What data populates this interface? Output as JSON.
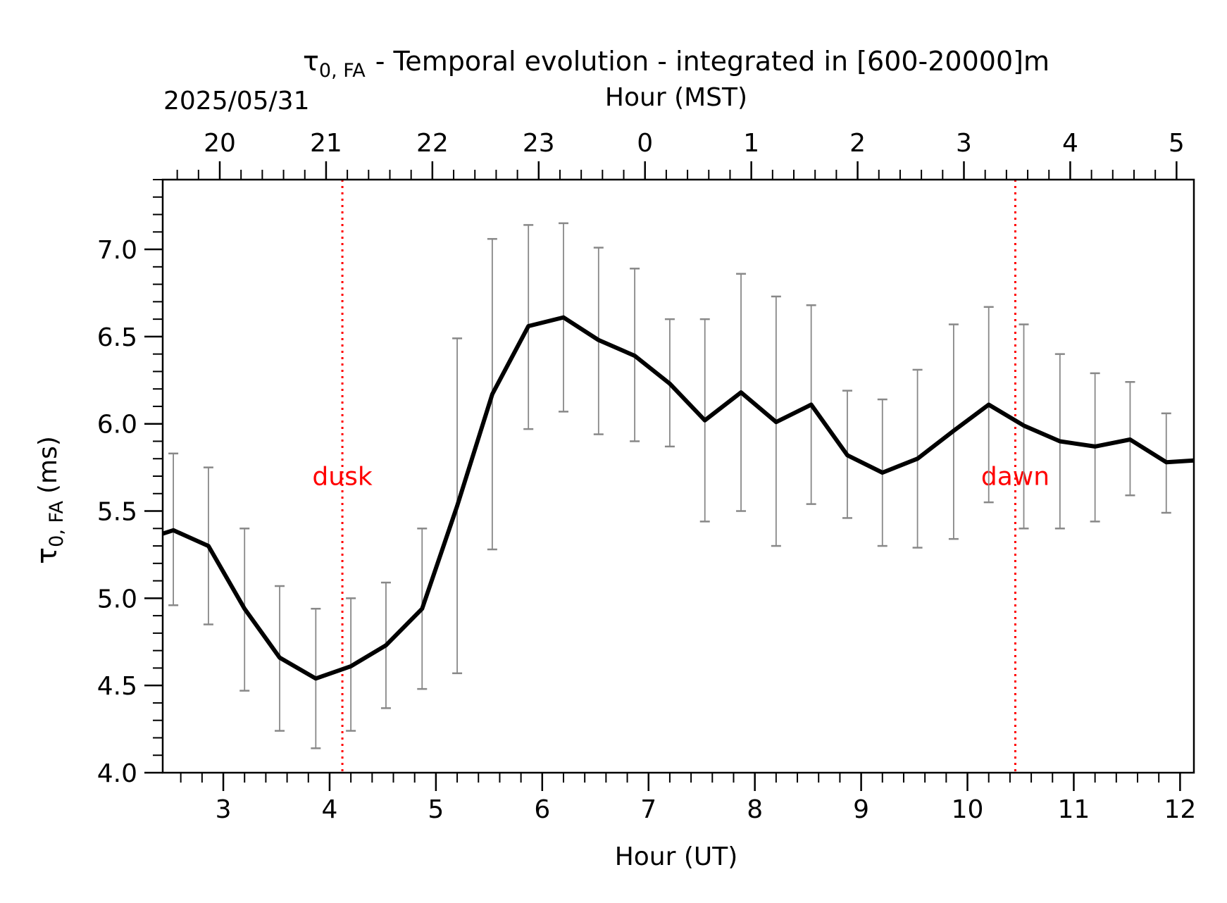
{
  "chart_data": {
    "type": "line",
    "title": "- Temporal evolution - integrated in [600-20000]m",
    "title_symbol": "τ",
    "title_symbol_sub": "0, FA",
    "date_label": "2025/05/31",
    "xlabel": "Hour (UT)",
    "x2label": "Hour (MST)",
    "ylabel_symbol": "τ",
    "ylabel_sub": "0, FA",
    "ylabel_unit": "(ms)",
    "xlim": [
      2.43,
      12.13
    ],
    "ylim": [
      4.0,
      7.4
    ],
    "x_ticks": [
      3,
      4,
      5,
      6,
      7,
      8,
      9,
      10,
      11,
      12
    ],
    "x_tick_labels": [
      "3",
      "4",
      "5",
      "6",
      "7",
      "8",
      "9",
      "10",
      "11",
      "12"
    ],
    "x2_ticks": [
      2.9667,
      3.9667,
      4.9667,
      5.9667,
      6.9667,
      7.9667,
      8.9667,
      9.9667,
      10.9667,
      11.9667
    ],
    "x2_tick_labels": [
      "20",
      "21",
      "22",
      "23",
      "0",
      "1",
      "2",
      "3",
      "4",
      "5"
    ],
    "y_ticks": [
      4.0,
      4.5,
      5.0,
      5.5,
      6.0,
      6.5,
      7.0
    ],
    "y_tick_labels": [
      "4.0",
      "4.5",
      "5.0",
      "5.5",
      "6.0",
      "6.5",
      "7.0"
    ],
    "series": [
      {
        "color": "#000000",
        "errorbar_color": "#888888",
        "points": [
          {
            "x": 2.43,
            "y": 5.37
          },
          {
            "x": 2.53,
            "y": 5.39,
            "lo": 4.96,
            "hi": 5.83
          },
          {
            "x": 2.86,
            "y": 5.3,
            "lo": 4.85,
            "hi": 5.75
          },
          {
            "x": 3.2,
            "y": 4.94,
            "lo": 4.47,
            "hi": 5.4
          },
          {
            "x": 3.53,
            "y": 4.66,
            "lo": 4.24,
            "hi": 5.07
          },
          {
            "x": 3.87,
            "y": 4.54,
            "lo": 4.14,
            "hi": 4.94
          },
          {
            "x": 4.2,
            "y": 4.61,
            "lo": 4.24,
            "hi": 5.0
          },
          {
            "x": 4.53,
            "y": 4.73,
            "lo": 4.37,
            "hi": 5.09
          },
          {
            "x": 4.87,
            "y": 4.94,
            "lo": 4.48,
            "hi": 5.4
          },
          {
            "x": 5.2,
            "y": 5.53,
            "lo": 4.57,
            "hi": 6.49
          },
          {
            "x": 5.53,
            "y": 6.17,
            "lo": 5.28,
            "hi": 7.06
          },
          {
            "x": 5.87,
            "y": 6.56,
            "lo": 5.97,
            "hi": 7.14
          },
          {
            "x": 6.2,
            "y": 6.61,
            "lo": 6.07,
            "hi": 7.15
          },
          {
            "x": 6.53,
            "y": 6.48,
            "lo": 5.94,
            "hi": 7.01
          },
          {
            "x": 6.87,
            "y": 6.39,
            "lo": 5.9,
            "hi": 6.89
          },
          {
            "x": 7.2,
            "y": 6.23,
            "lo": 5.87,
            "hi": 6.6
          },
          {
            "x": 7.53,
            "y": 6.02,
            "lo": 5.44,
            "hi": 6.6
          },
          {
            "x": 7.87,
            "y": 6.18,
            "lo": 5.5,
            "hi": 6.86
          },
          {
            "x": 8.2,
            "y": 6.01,
            "lo": 5.3,
            "hi": 6.73
          },
          {
            "x": 8.53,
            "y": 6.11,
            "lo": 5.54,
            "hi": 6.68
          },
          {
            "x": 8.87,
            "y": 5.82,
            "lo": 5.46,
            "hi": 6.19
          },
          {
            "x": 9.2,
            "y": 5.72,
            "lo": 5.3,
            "hi": 6.14
          },
          {
            "x": 9.53,
            "y": 5.8,
            "lo": 5.29,
            "hi": 6.31
          },
          {
            "x": 9.87,
            "y": 5.96,
            "lo": 5.34,
            "hi": 6.57
          },
          {
            "x": 10.2,
            "y": 6.11,
            "lo": 5.55,
            "hi": 6.67
          },
          {
            "x": 10.53,
            "y": 5.99,
            "lo": 5.4,
            "hi": 6.57
          },
          {
            "x": 10.87,
            "y": 5.9,
            "lo": 5.4,
            "hi": 6.4
          },
          {
            "x": 11.2,
            "y": 5.87,
            "lo": 5.44,
            "hi": 6.29
          },
          {
            "x": 11.53,
            "y": 5.91,
            "lo": 5.59,
            "hi": 6.24
          },
          {
            "x": 11.87,
            "y": 5.78,
            "lo": 5.49,
            "hi": 6.06
          },
          {
            "x": 12.13,
            "y": 5.79
          }
        ]
      }
    ],
    "events": [
      {
        "label": "dusk",
        "x": 4.12,
        "color": "#ff0000"
      },
      {
        "label": "dawn",
        "x": 10.45,
        "color": "#ff0000"
      }
    ],
    "grid": false
  }
}
